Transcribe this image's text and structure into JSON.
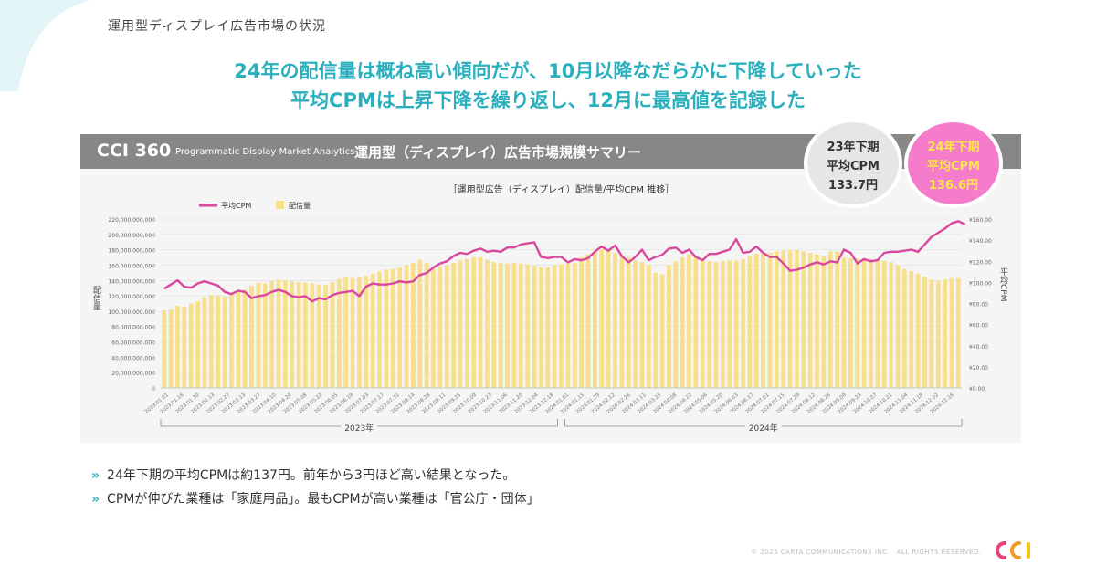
{
  "section_title": "運用型ディスプレイ広告市場の状況",
  "headline": {
    "line1": "24年の配信量は概ね高い傾向だが、10月以降なだらかに下降していった",
    "line2": "平均CPMは上昇下降を繰り返し、12月に最高値を記録した"
  },
  "banner": {
    "brand": "CCI 360",
    "brand_sub": "Programmatic Display Market Analytics",
    "title": "運用型（ディスプレイ）広告市場規模サマリー"
  },
  "badges": {
    "h2_2023": {
      "line1": "23年下期",
      "line2": "平均CPM",
      "line3": "133.7円"
    },
    "h2_2024": {
      "line1": "24年下期",
      "line2": "平均CPM",
      "line3": "136.6円"
    }
  },
  "bullets": [
    "24年下期の平均CPMは約137円。前年から3円ほど高い結果となった。",
    "CPMが伸びた業種は「家庭用品」。最もCPMが高い業種は「官公庁・団体」"
  ],
  "bullet_mark": "»",
  "copyright": "© 2025 CARTA COMMUNICATIONS INC.　ALL RIGHTS RESERVED.",
  "logo_text": "CCI",
  "colors": {
    "accent": "#2ab0bd",
    "cpm_line": "#d9479e",
    "bars": "#f7df8c",
    "banner": "#878787"
  },
  "chart_data": {
    "type": "bar",
    "title": "［運用型広告（ディスプレイ）配信量/平均CPM 推移］",
    "y_left_label": "配信量",
    "y_right_label": "平均CPM",
    "y_left_range": [
      0,
      220000000000
    ],
    "y_left_ticks": [
      "220,000,000,000",
      "200,000,000,000",
      "180,000,000,000",
      "160,000,000,000",
      "140,000,000,000",
      "120,000,000,000",
      "100,000,000,000",
      "80,000,000,000",
      "60,000,000,000",
      "40,000,000,000",
      "20,000,000,000",
      "0"
    ],
    "y_right_range": [
      0,
      160
    ],
    "y_right_ticks": [
      "¥160.00",
      "¥140.00",
      "¥120.00",
      "¥100.00",
      "¥80.00",
      "¥60.00",
      "¥40.00",
      "¥20.00",
      "¥0.00"
    ],
    "year_groups": [
      "2023年",
      "2024年"
    ],
    "series": [
      {
        "name": "配信量",
        "type": "bar",
        "values": [
          101000000000,
          102000000000,
          107000000000,
          106000000000,
          110000000000,
          113000000000,
          118000000000,
          121000000000,
          120000000000,
          119000000000,
          122000000000,
          125000000000,
          128000000000,
          133000000000,
          137000000000,
          136000000000,
          139000000000,
          141000000000,
          140000000000,
          139000000000,
          138000000000,
          137000000000,
          136000000000,
          135000000000,
          134000000000,
          138000000000,
          142000000000,
          144000000000,
          143000000000,
          144000000000,
          146000000000,
          149000000000,
          152000000000,
          154000000000,
          155000000000,
          157000000000,
          160000000000,
          163000000000,
          167000000000,
          163000000000,
          155000000000,
          158000000000,
          160000000000,
          163000000000,
          166000000000,
          168000000000,
          170000000000,
          170000000000,
          167000000000,
          164000000000,
          163000000000,
          162000000000,
          163000000000,
          162000000000,
          161000000000,
          159000000000,
          157000000000,
          157000000000,
          160000000000,
          161000000000,
          162000000000,
          163000000000,
          170000000000,
          174000000000,
          178000000000,
          180000000000,
          179000000000,
          176000000000,
          173000000000,
          170000000000,
          167000000000,
          164000000000,
          160000000000,
          150000000000,
          148000000000,
          160000000000,
          165000000000,
          170000000000,
          174000000000,
          172000000000,
          168000000000,
          165000000000,
          164000000000,
          165000000000,
          166000000000,
          166000000000,
          168000000000,
          172000000000,
          175000000000,
          175000000000,
          176000000000,
          178000000000,
          179000000000,
          180000000000,
          180000000000,
          178000000000,
          176000000000,
          174000000000,
          172000000000,
          178000000000,
          178000000000,
          170000000000,
          169000000000,
          168000000000,
          167000000000,
          168000000000,
          167000000000,
          166000000000,
          164000000000,
          160000000000,
          155000000000,
          152000000000,
          149000000000,
          145000000000,
          141000000000,
          139000000000,
          141000000000,
          143000000000,
          143000000000
        ]
      },
      {
        "name": "平均CPM",
        "type": "line",
        "values": [
          94,
          98,
          102,
          96,
          95,
          99,
          101,
          99,
          97,
          91,
          89,
          92,
          91,
          85,
          87,
          88,
          91,
          93,
          91,
          87,
          86,
          87,
          82,
          85,
          84,
          88,
          90,
          91,
          92,
          87,
          96,
          99,
          98,
          98,
          99,
          101,
          100,
          101,
          107,
          109,
          114,
          118,
          120,
          125,
          128,
          127,
          130,
          132,
          129,
          130,
          129,
          133,
          133,
          136,
          137,
          138,
          124,
          123,
          124,
          124,
          119,
          122,
          121,
          123,
          129,
          134,
          130,
          135,
          125,
          119,
          124,
          131,
          121,
          124,
          126,
          132,
          133,
          128,
          131,
          124,
          121,
          127,
          127,
          129,
          131,
          141,
          128,
          129,
          134,
          128,
          124,
          124,
          118,
          111,
          112,
          114,
          117,
          119,
          117,
          120,
          119,
          131,
          128,
          118,
          122,
          120,
          121,
          128,
          129,
          129,
          130,
          131,
          129,
          136,
          143,
          147,
          151,
          156,
          158,
          155
        ]
      }
    ],
    "legend": [
      "平均CPM",
      "配信量"
    ],
    "x_tick_labels": [
      "2023.01.01",
      "2023.01.16",
      "2023.01.30",
      "2023.02.13",
      "2023.02.27",
      "2023.03.13",
      "2023.03.27",
      "2023.04.10",
      "2023.04.24",
      "2023.05.08",
      "2023.05.22",
      "2023.06.05",
      "2023.06.19",
      "2023.07.03",
      "2023.07.17",
      "2023.07.31",
      "2023.08.14",
      "2023.08.28",
      "2023.09.11",
      "2023.09.25",
      "2023.10.09",
      "2023.10.23",
      "2023.11.06",
      "2023.11.20",
      "2023.12.04",
      "2023.12.18",
      "2024.01.01",
      "2024.01.15",
      "2024.01.29",
      "2024.02.12",
      "2024.02.26",
      "2024.03.11",
      "2024.03.25",
      "2024.04.08",
      "2024.04.22",
      "2024.05.06",
      "2024.05.20",
      "2024.06.03",
      "2024.06.17",
      "2024.07.01",
      "2024.07.15",
      "2024.07.29",
      "2024.08.12",
      "2024.08.26",
      "2024.09.09",
      "2024.09.23",
      "2024.10.07",
      "2024.10.21",
      "2024.11.04",
      "2024.11.18",
      "2024.12.02",
      "2024.12.16"
    ],
    "grid": true,
    "legend_position": "top-left"
  }
}
